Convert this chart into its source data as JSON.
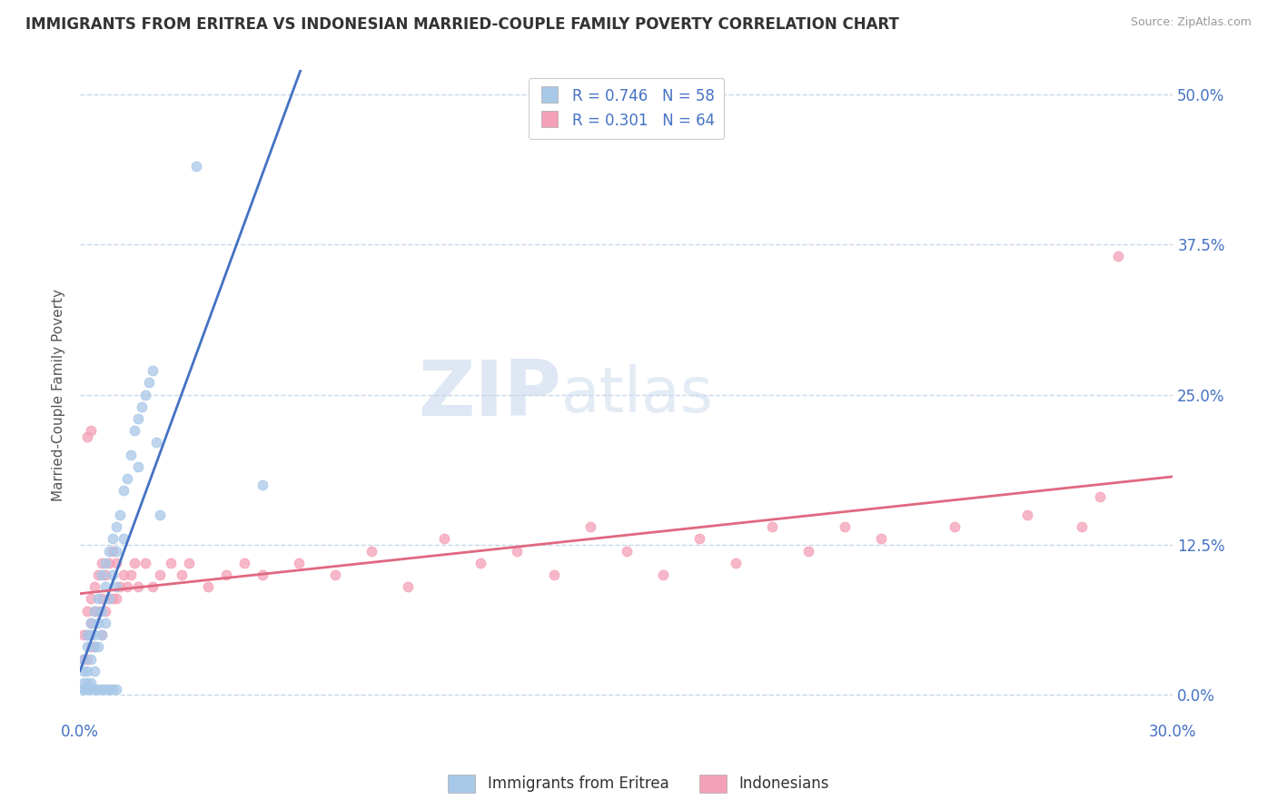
{
  "title": "IMMIGRANTS FROM ERITREA VS INDONESIAN MARRIED-COUPLE FAMILY POVERTY CORRELATION CHART",
  "source": "Source: ZipAtlas.com",
  "ylabel": "Married-Couple Family Poverty",
  "xlim": [
    0.0,
    0.3
  ],
  "ylim": [
    -0.02,
    0.52
  ],
  "ytick_labels_right": [
    "0.0%",
    "12.5%",
    "25.0%",
    "37.5%",
    "50.0%"
  ],
  "ytick_vals_right": [
    0.0,
    0.125,
    0.25,
    0.375,
    0.5
  ],
  "blue_R": 0.746,
  "blue_N": 58,
  "pink_R": 0.301,
  "pink_N": 64,
  "blue_color": "#a8c8e8",
  "blue_line_color": "#4472c4",
  "pink_color": "#f4a0b8",
  "pink_line_color": "#e06880",
  "legend_blue_label": "Immigrants from Eritrea",
  "legend_pink_label": "Indonesians",
  "watermark_zip": "ZIP",
  "watermark_atlas": "atlas",
  "background_color": "#ffffff",
  "grid_color": "#c8d8e8",
  "title_color": "#333333",
  "axis_label_color": "#555555",
  "tick_color": "#4472c4",
  "blue_x": [
    0.001,
    0.001,
    0.001,
    0.002,
    0.002,
    0.002,
    0.002,
    0.003,
    0.003,
    0.003,
    0.003,
    0.004,
    0.004,
    0.004,
    0.004,
    0.005,
    0.005,
    0.005,
    0.006,
    0.006,
    0.006,
    0.007,
    0.007,
    0.007,
    0.008,
    0.008,
    0.009,
    0.009,
    0.01,
    0.01,
    0.01,
    0.011,
    0.012,
    0.012,
    0.013,
    0.014,
    0.015,
    0.016,
    0.016,
    0.017,
    0.018,
    0.019,
    0.02,
    0.021,
    0.022,
    0.001,
    0.001,
    0.002,
    0.003,
    0.004,
    0.005,
    0.006,
    0.007,
    0.008,
    0.009,
    0.01,
    0.032,
    0.05
  ],
  "blue_y": [
    0.03,
    0.02,
    0.01,
    0.05,
    0.04,
    0.02,
    0.01,
    0.06,
    0.05,
    0.03,
    0.01,
    0.07,
    0.05,
    0.04,
    0.02,
    0.08,
    0.06,
    0.04,
    0.1,
    0.07,
    0.05,
    0.11,
    0.09,
    0.06,
    0.12,
    0.08,
    0.13,
    0.1,
    0.14,
    0.12,
    0.09,
    0.15,
    0.17,
    0.13,
    0.18,
    0.2,
    0.22,
    0.23,
    0.19,
    0.24,
    0.25,
    0.26,
    0.27,
    0.21,
    0.15,
    0.005,
    0.005,
    0.005,
    0.005,
    0.005,
    0.005,
    0.005,
    0.005,
    0.005,
    0.005,
    0.005,
    0.44,
    0.175
  ],
  "pink_x": [
    0.001,
    0.001,
    0.002,
    0.002,
    0.002,
    0.003,
    0.003,
    0.003,
    0.004,
    0.004,
    0.004,
    0.005,
    0.005,
    0.006,
    0.006,
    0.006,
    0.007,
    0.007,
    0.008,
    0.008,
    0.009,
    0.009,
    0.01,
    0.01,
    0.011,
    0.012,
    0.013,
    0.014,
    0.015,
    0.016,
    0.018,
    0.02,
    0.022,
    0.025,
    0.028,
    0.03,
    0.035,
    0.04,
    0.045,
    0.05,
    0.06,
    0.07,
    0.08,
    0.09,
    0.1,
    0.11,
    0.12,
    0.13,
    0.14,
    0.15,
    0.16,
    0.17,
    0.18,
    0.19,
    0.2,
    0.21,
    0.22,
    0.24,
    0.26,
    0.28,
    0.002,
    0.003,
    0.275,
    0.285
  ],
  "pink_y": [
    0.05,
    0.03,
    0.07,
    0.05,
    0.03,
    0.08,
    0.06,
    0.04,
    0.09,
    0.07,
    0.04,
    0.1,
    0.07,
    0.11,
    0.08,
    0.05,
    0.1,
    0.07,
    0.11,
    0.08,
    0.12,
    0.08,
    0.11,
    0.08,
    0.09,
    0.1,
    0.09,
    0.1,
    0.11,
    0.09,
    0.11,
    0.09,
    0.1,
    0.11,
    0.1,
    0.11,
    0.09,
    0.1,
    0.11,
    0.1,
    0.11,
    0.1,
    0.12,
    0.09,
    0.13,
    0.11,
    0.12,
    0.1,
    0.14,
    0.12,
    0.1,
    0.13,
    0.11,
    0.14,
    0.12,
    0.14,
    0.13,
    0.14,
    0.15,
    0.165,
    0.215,
    0.22,
    0.14,
    0.365
  ]
}
